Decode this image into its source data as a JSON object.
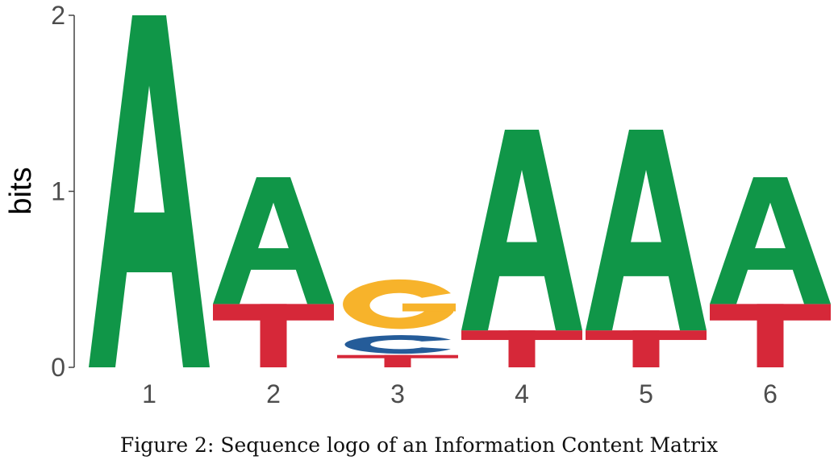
{
  "chart_data": {
    "type": "sequence-logo",
    "ylabel": "bits",
    "ylim": [
      0,
      2
    ],
    "yticks": [
      "0",
      "1",
      "2"
    ],
    "categories": [
      "1",
      "2",
      "3",
      "4",
      "5",
      "6"
    ],
    "colors": {
      "A": "#109648",
      "C": "#255C99",
      "G": "#F7B32B",
      "T": "#D62839"
    },
    "positions": [
      {
        "position": "1",
        "letters": [
          {
            "letter": "A",
            "bits": 2.0
          }
        ]
      },
      {
        "position": "2",
        "letters": [
          {
            "letter": "T",
            "bits": 0.36
          },
          {
            "letter": "A",
            "bits": 0.72
          }
        ]
      },
      {
        "position": "3",
        "letters": [
          {
            "letter": "T",
            "bits": 0.07
          },
          {
            "letter": "C",
            "bits": 0.12
          },
          {
            "letter": "G",
            "bits": 0.32
          }
        ]
      },
      {
        "position": "4",
        "letters": [
          {
            "letter": "T",
            "bits": 0.21
          },
          {
            "letter": "A",
            "bits": 1.14
          }
        ]
      },
      {
        "position": "5",
        "letters": [
          {
            "letter": "T",
            "bits": 0.21
          },
          {
            "letter": "A",
            "bits": 1.14
          }
        ]
      },
      {
        "position": "6",
        "letters": [
          {
            "letter": "T",
            "bits": 0.36
          },
          {
            "letter": "A",
            "bits": 0.72
          }
        ]
      }
    ]
  },
  "caption": "Figure 2: Sequence logo of an Information Content Matrix"
}
